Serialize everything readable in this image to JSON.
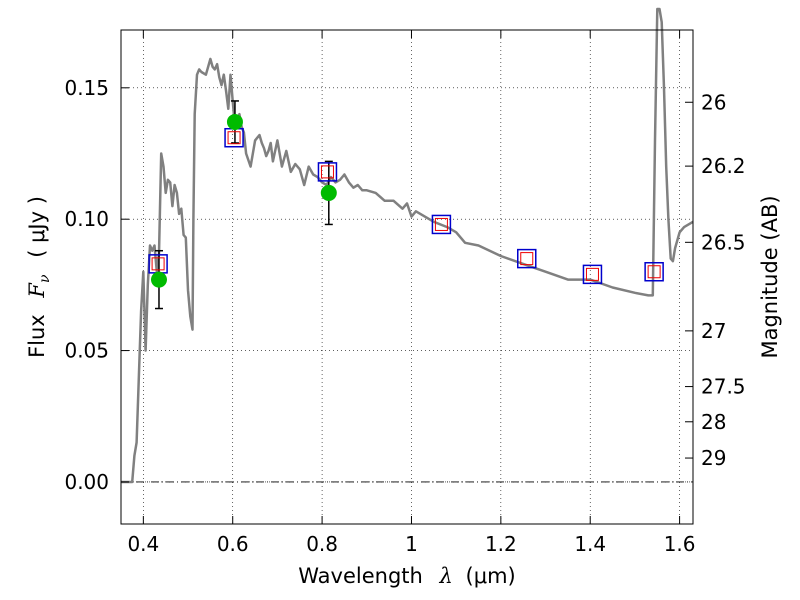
{
  "chart_data": {
    "type": "line",
    "xlabel_prefix": "Wavelength",
    "xlabel_symbol": "λ",
    "xlabel_unit": "(μm)",
    "ylabel_prefix": "Flux",
    "ylabel_symbol": "F",
    "ylabel_sub": "ν",
    "ylabel_unit": "( μJy )",
    "y2label": "Magnitude (AB)",
    "xlim": [
      0.35,
      1.63
    ],
    "ylim": [
      -0.016,
      0.172
    ],
    "xticks": [
      0.4,
      0.6,
      0.8,
      1.0,
      1.2,
      1.4,
      1.6
    ],
    "xtick_labels": [
      "0.4",
      "0.6",
      "0.8",
      "1",
      "1.2",
      "1.4",
      "1.6"
    ],
    "yticks": [
      0.0,
      0.05,
      0.1,
      0.15
    ],
    "ytick_labels": [
      "0.00",
      "0.05",
      "0.10",
      "0.15"
    ],
    "y2ticks": [
      {
        "label": "26",
        "flux": 0.1445
      },
      {
        "label": "26.2",
        "flux": 0.1202
      },
      {
        "label": "26.5",
        "flux": 0.0912
      },
      {
        "label": "27",
        "flux": 0.0575
      },
      {
        "label": "27.5",
        "flux": 0.0363
      },
      {
        "label": "28",
        "flux": 0.0229
      },
      {
        "label": "29",
        "flux": 0.0091
      }
    ],
    "grid": true,
    "colors": {
      "sed_line": "#808080",
      "observed_marker": "#00bb00",
      "model_box": "#0000cc",
      "model_inner": "#ee0000",
      "errorbar": "#000000"
    },
    "sed_spectrum": {
      "x": [
        0.35,
        0.375,
        0.38,
        0.385,
        0.395,
        0.4,
        0.405,
        0.41,
        0.415,
        0.42,
        0.425,
        0.43,
        0.435,
        0.44,
        0.445,
        0.45,
        0.455,
        0.46,
        0.465,
        0.47,
        0.475,
        0.48,
        0.485,
        0.49,
        0.495,
        0.5,
        0.505,
        0.51,
        0.512,
        0.515,
        0.52,
        0.525,
        0.53,
        0.54,
        0.55,
        0.555,
        0.56,
        0.565,
        0.57,
        0.575,
        0.58,
        0.585,
        0.59,
        0.595,
        0.6,
        0.605,
        0.61,
        0.615,
        0.62,
        0.625,
        0.63,
        0.64,
        0.65,
        0.655,
        0.66,
        0.665,
        0.67,
        0.675,
        0.68,
        0.685,
        0.69,
        0.7,
        0.71,
        0.72,
        0.73,
        0.74,
        0.75,
        0.76,
        0.77,
        0.78,
        0.79,
        0.8,
        0.81,
        0.82,
        0.83,
        0.84,
        0.85,
        0.86,
        0.87,
        0.88,
        0.89,
        0.9,
        0.92,
        0.94,
        0.96,
        0.98,
        0.99,
        1.0,
        1.01,
        1.05,
        1.08,
        1.1,
        1.12,
        1.15,
        1.2,
        1.25,
        1.3,
        1.35,
        1.4,
        1.45,
        1.5,
        1.53,
        1.54,
        1.545,
        1.55,
        1.555,
        1.56,
        1.565,
        1.57,
        1.575,
        1.58,
        1.585,
        1.59,
        1.6,
        1.61,
        1.63
      ],
      "y": [
        0.0,
        0.0,
        0.01,
        0.015,
        0.065,
        0.08,
        0.05,
        0.075,
        0.09,
        0.088,
        0.09,
        0.08,
        0.087,
        0.125,
        0.12,
        0.11,
        0.115,
        0.114,
        0.105,
        0.113,
        0.11,
        0.102,
        0.104,
        0.094,
        0.093,
        0.073,
        0.063,
        0.058,
        0.1,
        0.14,
        0.155,
        0.157,
        0.156,
        0.155,
        0.161,
        0.158,
        0.157,
        0.159,
        0.154,
        0.151,
        0.155,
        0.149,
        0.142,
        0.155,
        0.145,
        0.135,
        0.137,
        0.14,
        0.135,
        0.133,
        0.125,
        0.12,
        0.13,
        0.131,
        0.132,
        0.129,
        0.127,
        0.124,
        0.126,
        0.129,
        0.122,
        0.13,
        0.12,
        0.126,
        0.118,
        0.121,
        0.119,
        0.113,
        0.12,
        0.117,
        0.116,
        0.114,
        0.113,
        0.116,
        0.114,
        0.115,
        0.117,
        0.114,
        0.112,
        0.113,
        0.111,
        0.111,
        0.11,
        0.107,
        0.107,
        0.104,
        0.106,
        0.101,
        0.103,
        0.099,
        0.097,
        0.095,
        0.091,
        0.09,
        0.086,
        0.083,
        0.08,
        0.077,
        0.077,
        0.074,
        0.072,
        0.071,
        0.071,
        0.13,
        0.18,
        0.18,
        0.175,
        0.15,
        0.12,
        0.1,
        0.085,
        0.084,
        0.089,
        0.095,
        0.097,
        0.099
      ]
    },
    "observed_points": [
      {
        "x": 0.435,
        "y": 0.077,
        "err": 0.011
      },
      {
        "x": 0.605,
        "y": 0.137,
        "err": 0.008
      },
      {
        "x": 0.815,
        "y": 0.11,
        "err": 0.012
      }
    ],
    "model_photometry": [
      {
        "x": 0.433,
        "y": 0.083
      },
      {
        "x": 0.603,
        "y": 0.131
      },
      {
        "x": 0.812,
        "y": 0.118
      },
      {
        "x": 1.067,
        "y": 0.098
      },
      {
        "x": 1.258,
        "y": 0.085
      },
      {
        "x": 1.405,
        "y": 0.079
      },
      {
        "x": 1.543,
        "y": 0.08
      }
    ]
  }
}
